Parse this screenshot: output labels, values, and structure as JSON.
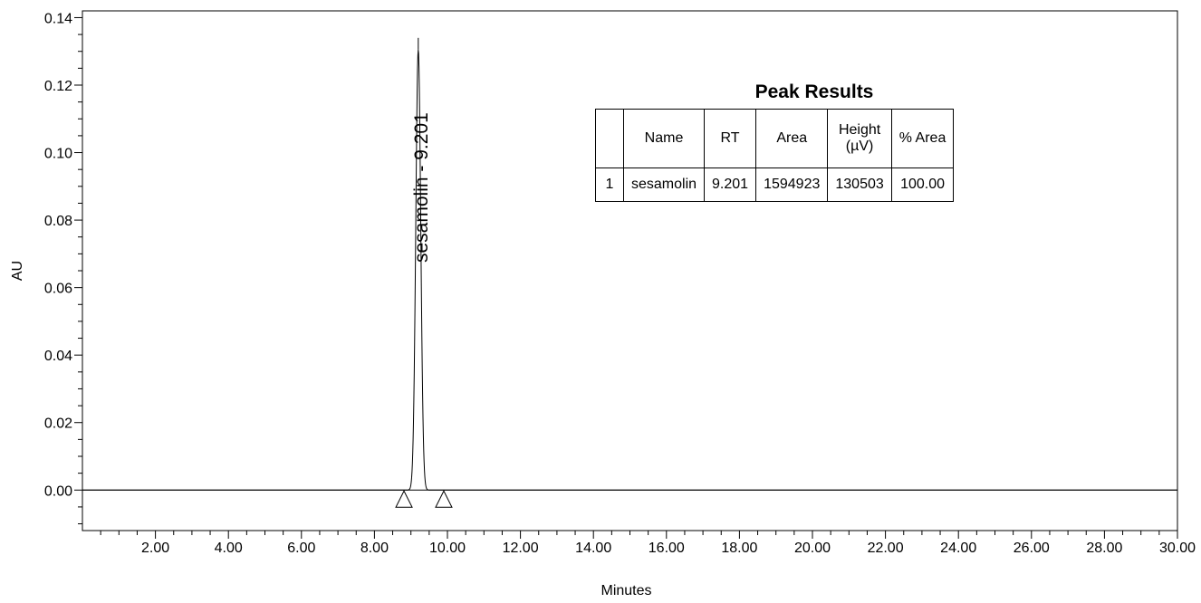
{
  "chart_data": {
    "type": "line",
    "xlabel": "Minutes",
    "ylabel": "AU",
    "xlim": [
      0,
      30
    ],
    "ylim": [
      -0.012,
      0.142
    ],
    "x_ticks": [
      2,
      4,
      6,
      8,
      10,
      12,
      14,
      16,
      18,
      20,
      22,
      24,
      26,
      28,
      30
    ],
    "x_tick_labels": [
      "2.00",
      "4.00",
      "6.00",
      "8.00",
      "10.00",
      "12.00",
      "14.00",
      "16.00",
      "18.00",
      "20.00",
      "22.00",
      "24.00",
      "26.00",
      "28.00",
      "30.00"
    ],
    "y_ticks": [
      0,
      0.02,
      0.04,
      0.06,
      0.08,
      0.1,
      0.12,
      0.14
    ],
    "y_tick_labels": [
      "0.00",
      "0.02",
      "0.04",
      "0.06",
      "0.08",
      "0.10",
      "0.12",
      "0.14"
    ],
    "grid": false,
    "peak": {
      "name": "sesamolin",
      "rt": 9.201,
      "height_au": 0.1305
    },
    "peak_label": "sesamolin - 9.201",
    "integration_markers": [
      8.81,
      9.9
    ],
    "table": {
      "title": "Peak Results",
      "headers": [
        "",
        "Name",
        "RT",
        "Area",
        "Height\n(µV)",
        "% Area"
      ],
      "header_height_line1": "Height",
      "header_height_line2": "(µV)",
      "rows": [
        {
          "index": "1",
          "name": "sesamolin",
          "rt": "9.201",
          "area": "1594923",
          "height": "130503",
          "pct_area": "100.00"
        }
      ]
    }
  }
}
